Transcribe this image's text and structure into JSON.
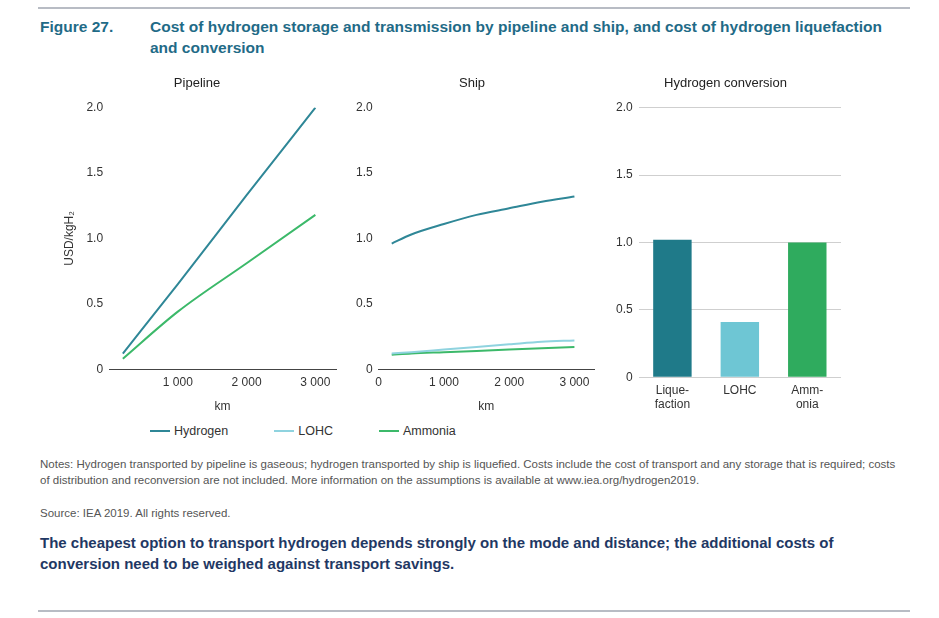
{
  "figure_label": "Figure 27.",
  "title": "Cost of hydrogen storage and transmission by pipeline and ship, and cost of hydrogen liquefaction and conversion",
  "notes": "Notes: Hydrogen transported by pipeline is gaseous; hydrogen transported by ship is liquefied. Costs include the cost of transport and any storage that is required; costs of distribution and reconversion are not included. More information on the assumptions is available at www.iea.org/hydrogen2019.",
  "source": "Source: IEA 2019. All rights reserved.",
  "caption": "The cheapest option to transport hydrogen depends strongly on the mode and distance; the additional costs of conversion need to be weighed against transport savings.",
  "chart_data": [
    {
      "type": "line",
      "title": "Pipeline",
      "x_label": "km",
      "y_label": "USD/kgH₂",
      "x": [
        200,
        1000,
        2000,
        3000
      ],
      "series": [
        {
          "name": "Hydrogen",
          "color": "#2f8797",
          "values": [
            0.12,
            0.65,
            1.33,
            2.0
          ]
        },
        {
          "name": "Ammonia",
          "color": "#3cb96a",
          "values": [
            0.08,
            0.44,
            0.81,
            1.18
          ]
        }
      ],
      "xlim": [
        0,
        3300
      ],
      "xticks": [
        {
          "value": 1000,
          "label": "1 000"
        },
        {
          "value": 2000,
          "label": "2 000"
        },
        {
          "value": 3000,
          "label": "3 000"
        }
      ],
      "ylim": [
        0,
        2
      ],
      "yticks": [
        0,
        0.5,
        {
          "value": 1,
          "label": "1.0"
        },
        1.5,
        {
          "value": 2,
          "label": "2.0"
        }
      ],
      "grid": false
    },
    {
      "type": "line",
      "title": "Ship",
      "x_label": "km",
      "x": [
        200,
        500,
        1000,
        1500,
        2000,
        2500,
        3000
      ],
      "series": [
        {
          "name": "Hydrogen",
          "color": "#2f8797",
          "values": [
            0.96,
            1.03,
            1.11,
            1.18,
            1.23,
            1.28,
            1.32
          ]
        },
        {
          "name": "LOHC",
          "color": "#8fd3df",
          "values": [
            0.12,
            0.13,
            0.15,
            0.17,
            0.19,
            0.21,
            0.22
          ]
        },
        {
          "name": "Ammonia",
          "color": "#3cb96a",
          "values": [
            0.11,
            0.12,
            0.13,
            0.14,
            0.15,
            0.16,
            0.17
          ]
        }
      ],
      "xlim": [
        0,
        3300
      ],
      "xticks": [
        0,
        {
          "value": 1000,
          "label": "1 000"
        },
        {
          "value": 2000,
          "label": "2 000"
        },
        {
          "value": 3000,
          "label": "3 000"
        }
      ],
      "ylim": [
        0,
        2
      ],
      "yticks": [
        0,
        0.5,
        {
          "value": 1,
          "label": "1.0"
        },
        1.5,
        {
          "value": 2,
          "label": "2.0"
        }
      ],
      "grid": false,
      "legend": "bottom"
    },
    {
      "type": "bar",
      "title": "Hydrogen conversion",
      "categories": [
        "Lique-\nfaction",
        "LOHC",
        "Amm-\nonia"
      ],
      "values": [
        1.02,
        0.41,
        1.0
      ],
      "colors": [
        "#1f7a89",
        "#6ec6d4",
        "#2fab5e"
      ],
      "ylim": [
        0,
        2
      ],
      "yticks": [
        0,
        0.5,
        {
          "value": 1,
          "label": "1.0"
        },
        1.5,
        {
          "value": 2,
          "label": "2.0"
        }
      ],
      "grid": true
    }
  ]
}
